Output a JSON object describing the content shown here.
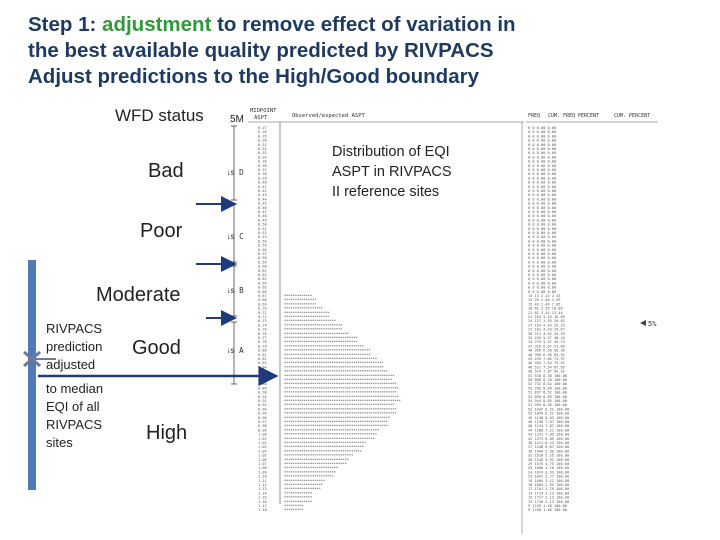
{
  "title": {
    "line1_prefix": "Step 1: ",
    "line1_highlight": "adjustment",
    "line1_suffix": " to remove effect of variation in",
    "line2": "the best available quality predicted by RIVPACS",
    "line3": "Adjust predictions to the High/Good boundary",
    "highlight_color": "#2f9a3a",
    "title_color": "#1f3a5f"
  },
  "labels": {
    "wfd_status": "WFD status",
    "five_percent_marker": "5M"
  },
  "statuses": [
    "Bad",
    "Poor",
    "Moderate",
    "Good",
    "High"
  ],
  "distribution_caption": [
    "Distribution of EQI",
    "ASPT in RIVPACS",
    "II reference sites"
  ],
  "adjustment_note": {
    "part1": [
      "RIVPACS",
      "prediction",
      "adjusted"
    ],
    "part2": [
      "to median",
      "EQI of all",
      "RIVPACS",
      "sites"
    ]
  },
  "printout": {
    "class_labels": [
      "Class D",
      "Class C",
      "Class B",
      "Class A"
    ],
    "header_left": [
      "MIDPOINT",
      "ASPT"
    ],
    "header_mid": "Observed/expected ASPT",
    "header_right": [
      "FREQ",
      "CUM. FREQ",
      "PERCENT",
      "CUM. PERCENT"
    ],
    "right_marker": "5%"
  },
  "colors": {
    "axis_bar": "#4f7ab3",
    "arrow": "#1f3a7a",
    "cross": "#6b7a99"
  }
}
